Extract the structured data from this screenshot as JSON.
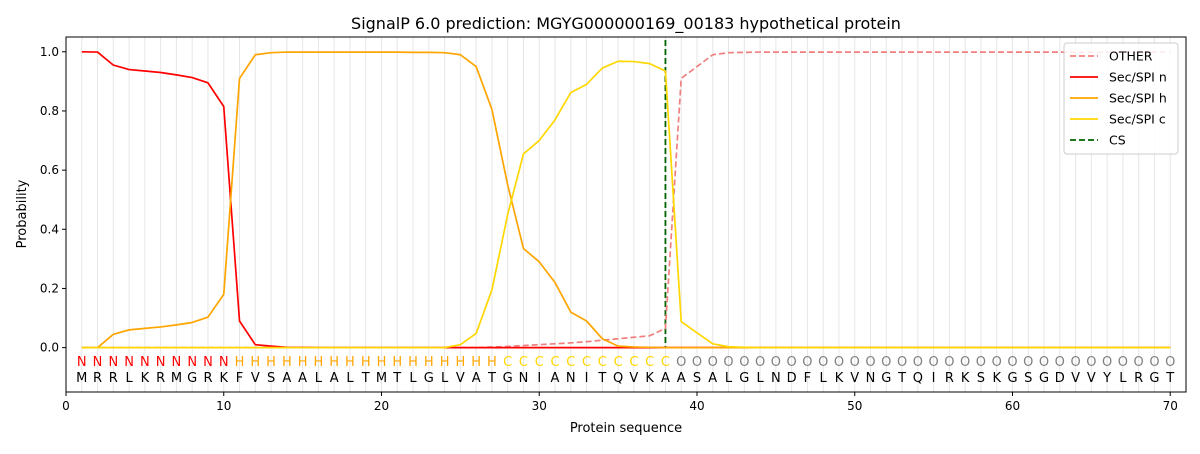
{
  "chart_data": {
    "type": "line",
    "title": "SignalP 6.0 prediction: MGYG000000169_00183 hypothetical protein",
    "xlabel": "Protein sequence",
    "ylabel": "Probability",
    "xlim": [
      0,
      71
    ],
    "ylim": [
      -0.15,
      1.05
    ],
    "x_ticks": [
      0,
      10,
      20,
      30,
      40,
      50,
      60,
      70
    ],
    "y_ticks": [
      0.0,
      0.2,
      0.4,
      0.6,
      0.8,
      1.0
    ],
    "x_tick_labels": [
      "0",
      "10",
      "20",
      "30",
      "40",
      "50",
      "60",
      "70"
    ],
    "y_tick_labels": [
      "0.0",
      "0.2",
      "0.4",
      "0.6",
      "0.8",
      "1.0"
    ],
    "vertical_grid": true,
    "legend_position": "top-right",
    "sequence": [
      "M",
      "R",
      "R",
      "L",
      "K",
      "R",
      "M",
      "G",
      "R",
      "K",
      "F",
      "V",
      "S",
      "A",
      "A",
      "L",
      "A",
      "L",
      "T",
      "M",
      "T",
      "L",
      "G",
      "L",
      "V",
      "A",
      "T",
      "G",
      "N",
      "I",
      "A",
      "N",
      "I",
      "T",
      "Q",
      "V",
      "K",
      "A",
      "A",
      "S",
      "A",
      "L",
      "G",
      "L",
      "N",
      "D",
      "F",
      "L",
      "K",
      "V",
      "N",
      "G",
      "T",
      "Q",
      "I",
      "R",
      "K",
      "S",
      "K",
      "G",
      "S",
      "G",
      "D",
      "V",
      "V",
      "Y",
      "L",
      "R",
      "G",
      "T"
    ],
    "region_labels": [
      "N",
      "N",
      "N",
      "N",
      "N",
      "N",
      "N",
      "N",
      "N",
      "N",
      "H",
      "H",
      "H",
      "H",
      "H",
      "H",
      "H",
      "H",
      "H",
      "H",
      "H",
      "H",
      "H",
      "H",
      "H",
      "H",
      "H",
      "C",
      "C",
      "C",
      "C",
      "C",
      "C",
      "C",
      "C",
      "C",
      "C",
      "C",
      "O",
      "O",
      "O",
      "O",
      "O",
      "O",
      "O",
      "O",
      "O",
      "O",
      "O",
      "O",
      "O",
      "O",
      "O",
      "O",
      "O",
      "O",
      "O",
      "O",
      "O",
      "O",
      "O",
      "O",
      "O",
      "O",
      "O",
      "O",
      "O",
      "O",
      "O",
      "O"
    ],
    "region_colors": {
      "N": "#ff0000",
      "H": "#ffa500",
      "C": "#ffd700",
      "O": "#808080"
    },
    "x": [
      1,
      2,
      3,
      4,
      5,
      6,
      7,
      8,
      9,
      10,
      11,
      12,
      13,
      14,
      15,
      16,
      17,
      18,
      19,
      20,
      21,
      22,
      23,
      24,
      25,
      26,
      27,
      28,
      29,
      30,
      31,
      32,
      33,
      34,
      35,
      36,
      37,
      38,
      39,
      40,
      41,
      42,
      43,
      44,
      45,
      46,
      47,
      48,
      49,
      50,
      51,
      52,
      53,
      54,
      55,
      56,
      57,
      58,
      59,
      60,
      61,
      62,
      63,
      64,
      65,
      66,
      67,
      68,
      69,
      70
    ],
    "series": [
      {
        "name": "OTHER",
        "color": "#f08080",
        "dash": "dashed",
        "values": [
          0,
          0,
          0,
          0,
          0,
          0,
          0,
          0,
          0,
          0,
          0,
          0,
          0,
          0,
          0,
          0,
          0,
          0,
          0,
          0,
          0,
          0,
          0,
          0,
          0,
          0,
          0.002,
          0.004,
          0.007,
          0.01,
          0.013,
          0.016,
          0.02,
          0.025,
          0.03,
          0.035,
          0.04,
          0.065,
          0.91,
          0.95,
          0.99,
          0.997,
          0.998,
          0.999,
          0.999,
          0.999,
          0.999,
          0.999,
          0.999,
          0.999,
          0.999,
          0.999,
          0.999,
          0.999,
          0.999,
          0.999,
          0.999,
          0.999,
          0.999,
          0.999,
          0.999,
          0.999,
          0.999,
          0.999,
          0.999,
          0.999,
          0.999,
          0.999,
          0.999,
          0.999
        ]
      },
      {
        "name": "Sec/SPI n",
        "color": "#ff0000",
        "dash": "solid",
        "values": [
          1.0,
          0.999,
          0.955,
          0.94,
          0.935,
          0.93,
          0.922,
          0.913,
          0.895,
          0.815,
          0.09,
          0.01,
          0.005,
          0.001,
          0.001,
          0,
          0,
          0,
          0,
          0,
          0,
          0,
          0,
          0,
          0,
          0,
          0,
          0,
          0,
          0,
          0,
          0,
          0,
          0,
          0,
          0,
          0,
          0,
          0,
          0,
          0,
          0,
          0,
          0,
          0,
          0,
          0,
          0,
          0,
          0,
          0,
          0,
          0,
          0,
          0,
          0,
          0,
          0,
          0,
          0,
          0,
          0,
          0,
          0,
          0,
          0,
          0,
          0,
          0,
          0
        ]
      },
      {
        "name": "Sec/SPI h",
        "color": "#ffa500",
        "dash": "solid",
        "values": [
          0,
          0,
          0.045,
          0.06,
          0.065,
          0.07,
          0.077,
          0.085,
          0.103,
          0.18,
          0.91,
          0.99,
          0.997,
          0.999,
          0.999,
          0.999,
          0.999,
          0.999,
          0.999,
          0.999,
          0.999,
          0.998,
          0.998,
          0.997,
          0.99,
          0.95,
          0.805,
          0.55,
          0.335,
          0.29,
          0.22,
          0.12,
          0.09,
          0.03,
          0.005,
          0.002,
          0.001,
          0,
          0,
          0,
          0,
          0,
          0,
          0,
          0,
          0,
          0,
          0,
          0,
          0,
          0,
          0,
          0,
          0,
          0,
          0,
          0,
          0,
          0,
          0,
          0,
          0,
          0,
          0,
          0,
          0,
          0,
          0,
          0,
          0
        ]
      },
      {
        "name": "Sec/SPI c",
        "color": "#ffd700",
        "dash": "solid",
        "values": [
          0,
          0,
          0,
          0,
          0,
          0,
          0,
          0,
          0,
          0,
          0,
          0,
          0,
          0,
          0,
          0,
          0,
          0,
          0,
          0,
          0,
          0,
          0,
          0,
          0.01,
          0.048,
          0.195,
          0.45,
          0.655,
          0.7,
          0.77,
          0.862,
          0.89,
          0.945,
          0.968,
          0.967,
          0.96,
          0.935,
          0.088,
          0.05,
          0.013,
          0.003,
          0.001,
          0,
          0,
          0,
          0,
          0,
          0,
          0,
          0,
          0,
          0,
          0,
          0,
          0,
          0,
          0,
          0,
          0,
          0,
          0,
          0,
          0,
          0,
          0,
          0,
          0,
          0,
          0
        ]
      }
    ],
    "cleavage_site": {
      "name": "CS",
      "x": 38,
      "color": "#006400",
      "dash": "dashed"
    }
  }
}
